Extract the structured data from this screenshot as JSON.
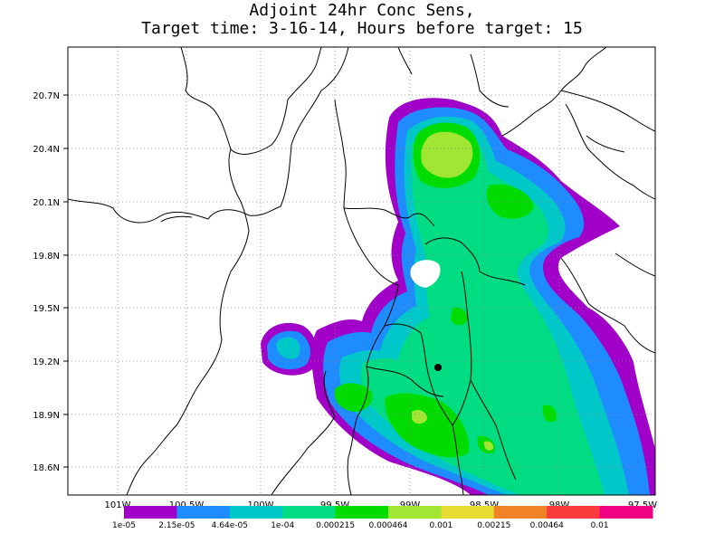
{
  "title": {
    "line1": "Adjoint 24hr Conc Sens,",
    "line2": "Target time: 3-16-14, Hours before target: 15"
  },
  "axes": {
    "y_ticks": [
      "20.7N",
      "20.4N",
      "20.1N",
      "19.8N",
      "19.5N",
      "19.2N",
      "18.9N",
      "18.6N"
    ],
    "x_ticks": [
      "101W",
      "100.5W",
      "100W",
      "99.5W",
      "99W",
      "98.5W",
      "98W",
      "97.5W"
    ],
    "grid": "dotted"
  },
  "legend": {
    "labels": [
      "1e-05",
      "2.15e-05",
      "4.64e-05",
      "1e-04",
      "0.000215",
      "0.000464",
      "0.001",
      "0.00215",
      "0.00464",
      "0.01"
    ],
    "colors": [
      "#a000c8",
      "#1e8cff",
      "#00c8c8",
      "#00dc82",
      "#00dc00",
      "#a0e632",
      "#e6dc32",
      "#f08228",
      "#fa3c3c",
      "#f00082"
    ]
  },
  "marker": {
    "label": "target",
    "lon": "98.85W",
    "lat": "19.15N"
  }
}
